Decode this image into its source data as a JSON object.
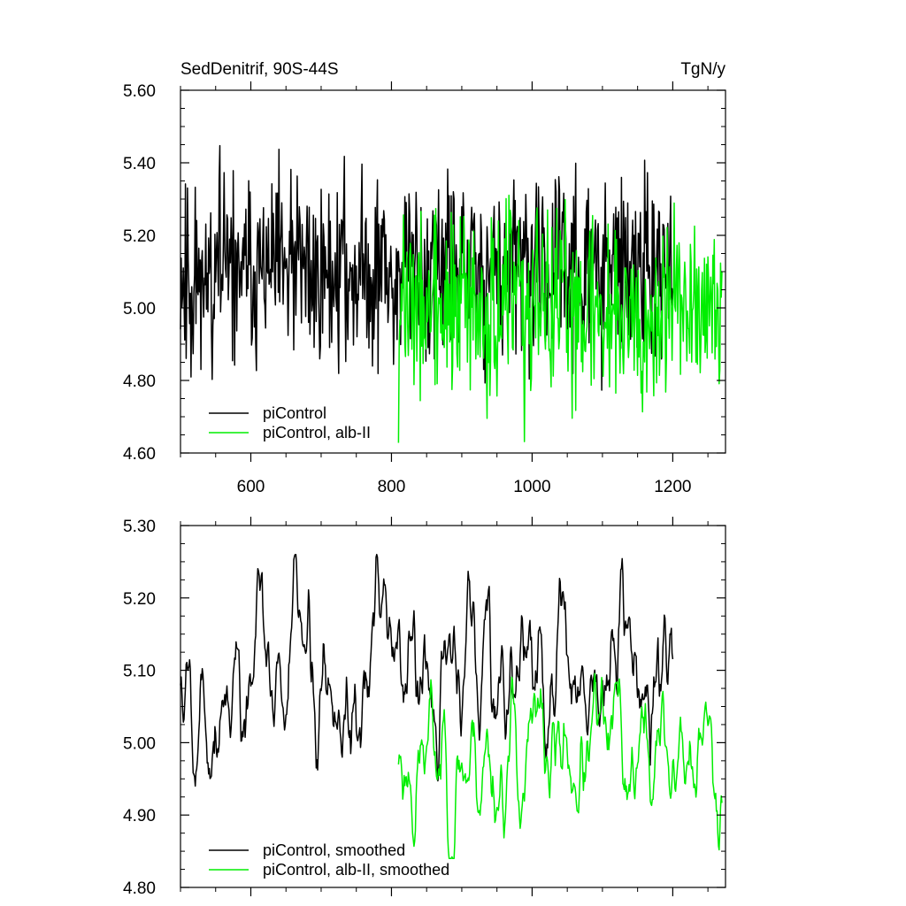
{
  "chart_data": [
    {
      "type": "line",
      "title_left": "SedDenitrif, 90S-44S",
      "title_right": "TgN/y",
      "xlim": [
        500,
        1275
      ],
      "ylim": [
        4.6,
        5.6
      ],
      "x_ticks": [
        600,
        800,
        1000,
        1200
      ],
      "x_tick_labels": [
        "600",
        "800",
        "1000",
        "1200"
      ],
      "y_ticks": [
        4.6,
        4.8,
        5.0,
        5.2,
        5.4,
        5.6
      ],
      "y_tick_labels": [
        "4.60",
        "4.80",
        "5.00",
        "5.20",
        "5.40",
        "5.60"
      ],
      "legend_position": "bottom-left",
      "grid": false,
      "series": [
        {
          "name": "piControl",
          "color": "#000000",
          "x_range": [
            500,
            1200
          ],
          "mean": 5.1,
          "amp": 0.14,
          "min": 4.76,
          "max": 5.47,
          "seed": 11
        },
        {
          "name": "piControl, alb-II",
          "color": "#00ee00",
          "x_range": [
            810,
            1270
          ],
          "mean": 5.0,
          "amp": 0.14,
          "min": 4.62,
          "max": 5.34,
          "seed": 37
        }
      ]
    },
    {
      "type": "line",
      "xlim": [
        500,
        1275
      ],
      "ylim": [
        4.8,
        5.3
      ],
      "x_ticks": [
        600,
        800,
        1000,
        1200
      ],
      "y_ticks": [
        4.8,
        4.9,
        5.0,
        5.1,
        5.2,
        5.3
      ],
      "y_tick_labels": [
        "4.80",
        "4.90",
        "5.00",
        "5.10",
        "5.20",
        "5.30"
      ],
      "legend_position": "bottom-left",
      "grid": false,
      "series": [
        {
          "name": "piControl, smoothed",
          "color": "#000000",
          "x_range": [
            500,
            1200
          ],
          "mean": 5.09,
          "amp": 0.065,
          "min": 4.94,
          "max": 5.26,
          "seed": 5
        },
        {
          "name": "piControl, alb-II, smoothed",
          "color": "#00ee00",
          "x_range": [
            810,
            1270
          ],
          "mean": 4.98,
          "amp": 0.055,
          "min": 4.84,
          "max": 5.13,
          "seed": 23
        }
      ]
    }
  ]
}
